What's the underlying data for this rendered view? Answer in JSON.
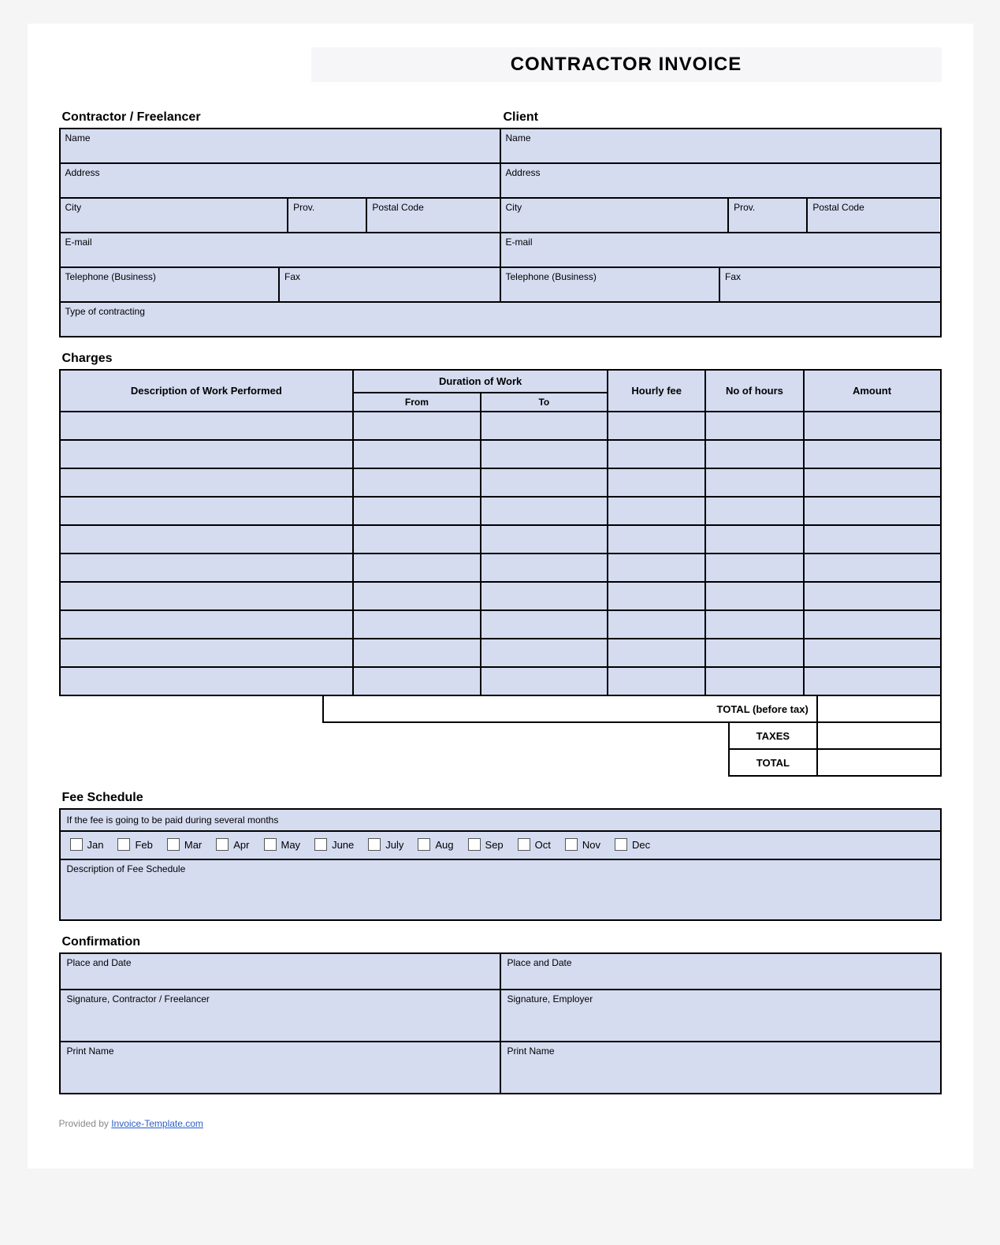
{
  "colors": {
    "field_bg": "#d5dcf0",
    "border": "#000000",
    "page_bg": "#ffffff",
    "title_bg": "#f6f6f8",
    "footer_text": "#888888",
    "link": "#2b5fc7"
  },
  "typography": {
    "title_fontsize": 24,
    "section_fontsize": 16,
    "label_fontsize": 12,
    "header_fontsize": 13
  },
  "title": "CONTRACTOR INVOICE",
  "sections": {
    "contractor": "Contractor / Freelancer",
    "client": "Client",
    "charges": "Charges",
    "fee": "Fee Schedule",
    "confirmation": "Confirmation"
  },
  "labels": {
    "name": "Name",
    "address": "Address",
    "city": "City",
    "prov": "Prov.",
    "postal": "Postal Code",
    "email": "E-mail",
    "tel": "Telephone (Business)",
    "fax": "Fax",
    "type": "Type of contracting"
  },
  "charges": {
    "col_desc": "Description of Work Performed",
    "col_duration": "Duration of Work",
    "col_from": "From",
    "col_to": "To",
    "col_hourly": "Hourly fee",
    "col_hours": "No of hours",
    "col_amount": "Amount",
    "row_count": 10,
    "total_before_tax": "TOTAL (before tax)",
    "taxes": "TAXES",
    "total": "TOTAL"
  },
  "fee": {
    "instruction": "If the fee is going to be paid during several months",
    "months": [
      "Jan",
      "Feb",
      "Mar",
      "Apr",
      "May",
      "June",
      "July",
      "Aug",
      "Sep",
      "Oct",
      "Nov",
      "Dec"
    ],
    "desc_label": "Description of Fee Schedule"
  },
  "confirmation": {
    "place_date": "Place and Date",
    "sig_contractor": "Signature, Contractor / Freelancer",
    "sig_employer": "Signature, Employer",
    "print_name": "Print Name"
  },
  "footer": {
    "prefix": "Provided by ",
    "link_text": "Invoice-Template.com"
  }
}
